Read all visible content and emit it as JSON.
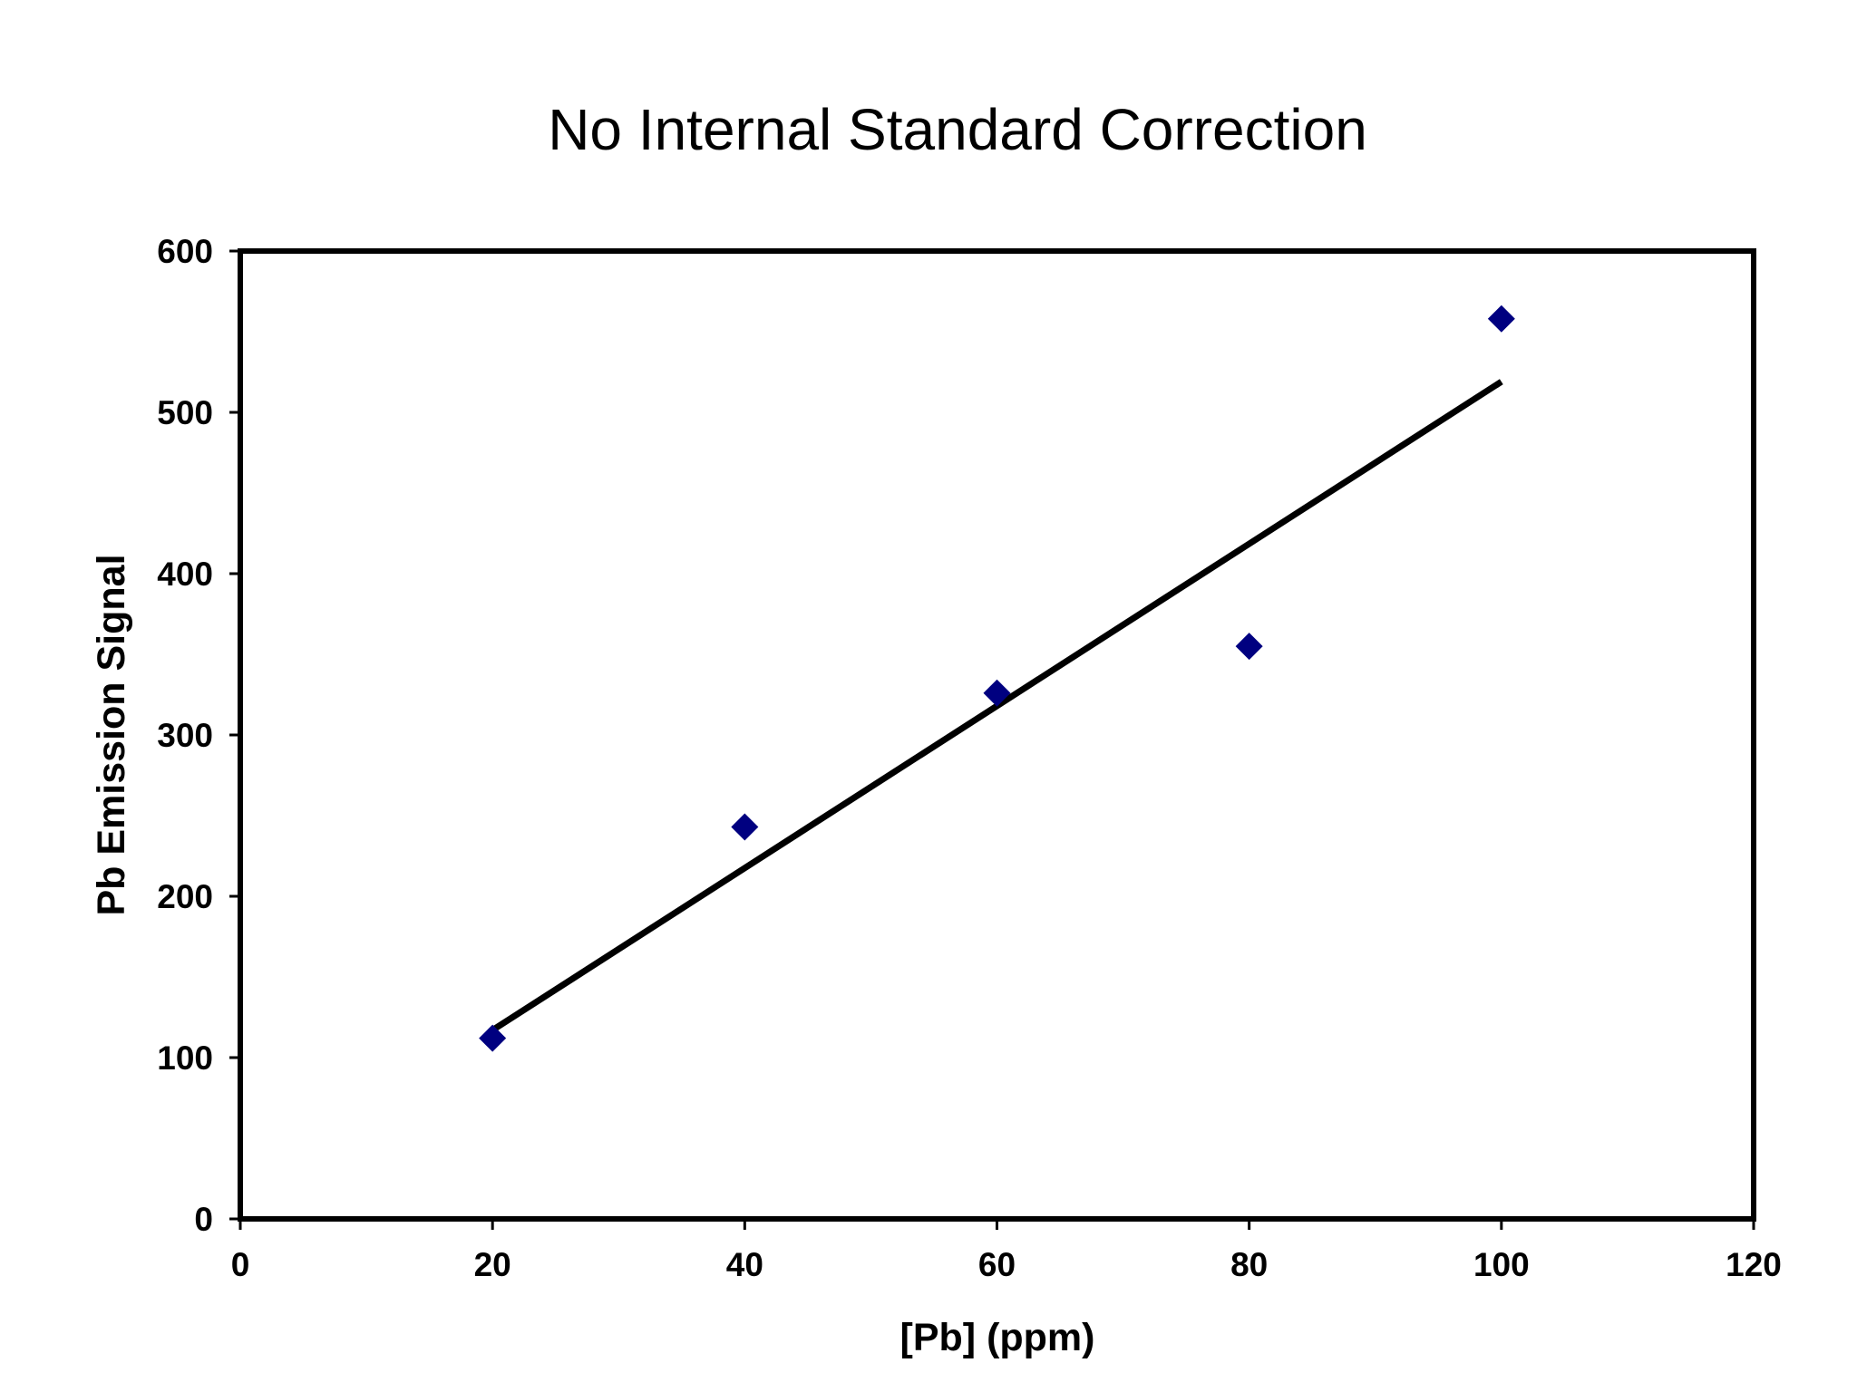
{
  "chart_data": {
    "type": "scatter",
    "title": "No Internal Standard Correction",
    "xlabel": "[Pb] (ppm)",
    "ylabel": "Pb Emission Signal",
    "xlim": [
      0,
      120
    ],
    "ylim": [
      0,
      600
    ],
    "x_ticks": [
      0,
      20,
      40,
      60,
      80,
      100,
      120
    ],
    "y_ticks": [
      0,
      100,
      200,
      300,
      400,
      500,
      600
    ],
    "grid": false,
    "legend": "none",
    "series": [
      {
        "marker": "diamond",
        "color": "#000080",
        "points": [
          {
            "x": 20,
            "y": 112
          },
          {
            "x": 40,
            "y": 243
          },
          {
            "x": 60,
            "y": 326
          },
          {
            "x": 80,
            "y": 355
          },
          {
            "x": 100,
            "y": 558
          }
        ]
      }
    ],
    "trendline": {
      "type": "linear",
      "color": "#000000",
      "x_start": 20,
      "y_start": 117,
      "x_end": 100,
      "y_end": 519
    }
  }
}
